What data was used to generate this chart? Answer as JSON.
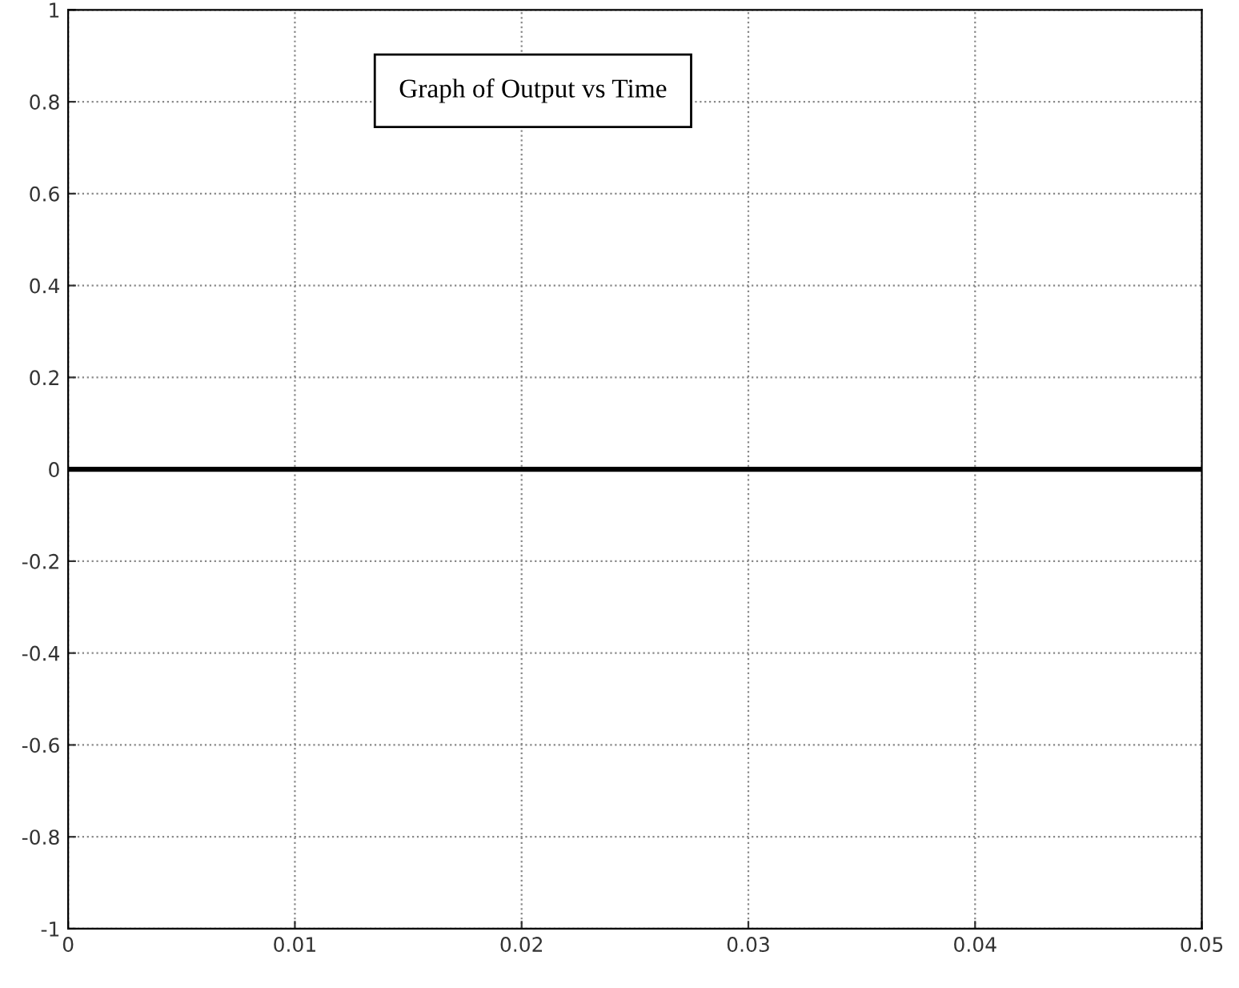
{
  "chart_data": {
    "type": "line",
    "title": "Graph of Output vs Time",
    "x": [
      0,
      0.05
    ],
    "series": [
      {
        "color": "#000000",
        "values": [
          0,
          0
        ]
      }
    ],
    "xlim": [
      0,
      0.05
    ],
    "ylim": [
      -1,
      1
    ],
    "xticks": [
      0,
      0.01,
      0.02,
      0.03,
      0.04,
      0.05
    ],
    "yticks": [
      -1,
      -0.8,
      -0.6,
      -0.4,
      -0.2,
      0,
      0.2,
      0.4,
      0.6,
      0.8,
      1
    ],
    "grid": true,
    "line_style": "solid"
  }
}
